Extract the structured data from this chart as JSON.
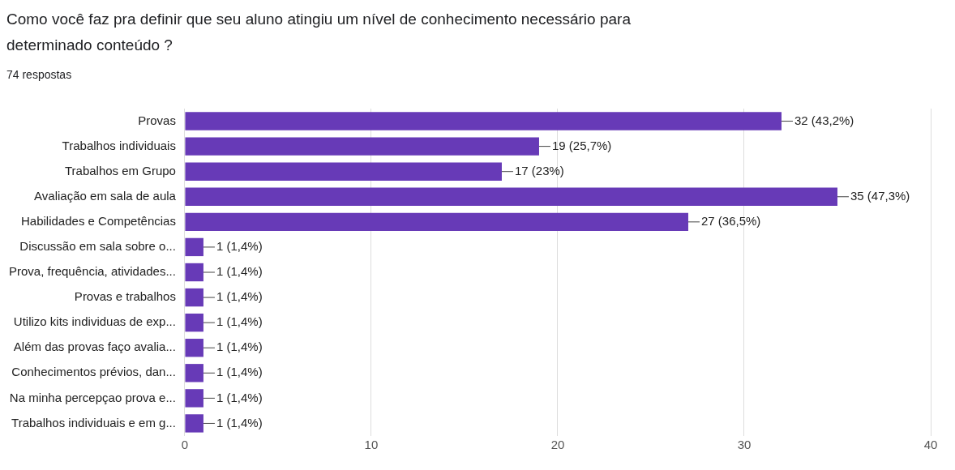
{
  "chart_data": {
    "type": "bar",
    "orientation": "horizontal",
    "title": "Como você faz pra definir que seu aluno atingiu um nível de conhecimento necessário para determinado conteúdo ?",
    "subtitle": "74 respostas",
    "categories": [
      "Provas",
      "Trabalhos individuais",
      "Trabalhos em Grupo",
      "Avaliação em sala de aula",
      "Habilidades e Competências",
      "Discussão em sala sobre o...",
      "Prova, frequência, atividades...",
      "Provas e trabalhos",
      "Utilizo kits individuas de exp...",
      "Além das provas faço avalia...",
      "Conhecimentos prévios, dan...",
      "Na minha percepçao prova e...",
      "Trabalhos individuais e em g..."
    ],
    "values": [
      32,
      19,
      17,
      35,
      27,
      1,
      1,
      1,
      1,
      1,
      1,
      1,
      1
    ],
    "value_labels": [
      "32 (43,2%)",
      "19 (25,7%)",
      "17 (23%)",
      "35 (47,3%)",
      "27 (36,5%)",
      "1 (1,4%)",
      "1 (1,4%)",
      "1 (1,4%)",
      "1 (1,4%)",
      "1 (1,4%)",
      "1 (1,4%)",
      "1 (1,4%)",
      "1 (1,4%)"
    ],
    "color": "#673ab7",
    "xlim": [
      0,
      40
    ],
    "xticks": [
      0,
      10,
      20,
      30,
      40
    ],
    "grid": "x",
    "legend": false
  }
}
